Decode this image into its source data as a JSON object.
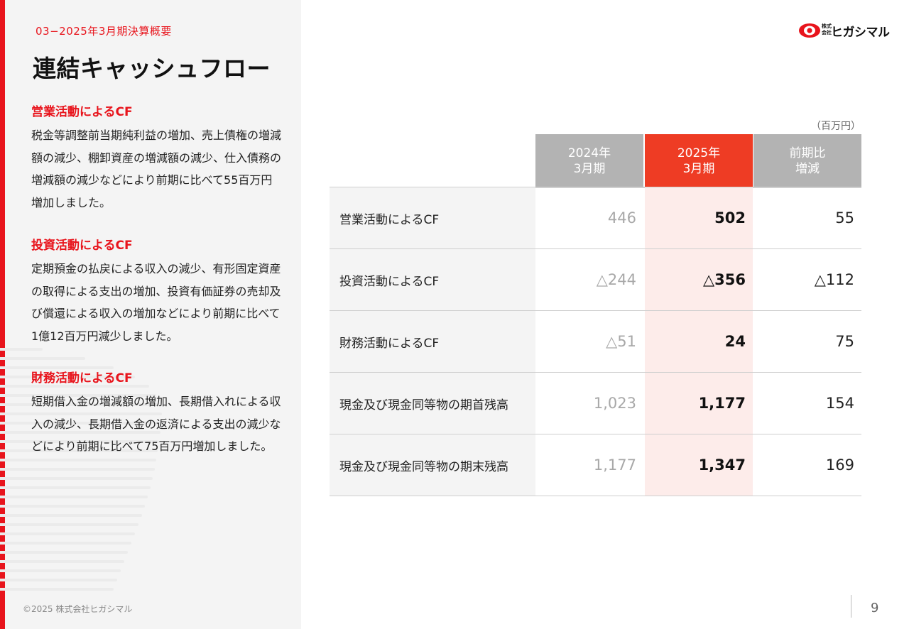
{
  "header": {
    "section": "03−2025年3月期決算概要",
    "title": "連結キャッシュフロー"
  },
  "logo": {
    "small_text_line1": "株式",
    "small_text_line2": "会社",
    "name": "ヒガシマル"
  },
  "explanations": [
    {
      "heading": "営業活動によるCF",
      "body": "税金等調整前当期純利益の増加、売上債権の増減額の減少、棚卸資産の増減額の減少、仕入債務の増減額の減少などにより前期に比べて55百万円増加しました。"
    },
    {
      "heading": "投資活動によるCF",
      "body": "定期預金の払戻による収入の減少、有形固定資産の取得による支出の増加、投資有価証券の売却及び償還による収入の増加などにより前期に比べて1億12百万円減少しました。"
    },
    {
      "heading": "財務活動によるCF",
      "body": "短期借入金の増減額の増加、長期借入れによる収入の減少、長期借入金の返済による支出の減少などにより前期に比べて75百万円増加しました。"
    }
  ],
  "table": {
    "unit": "（百万円）",
    "columns": [
      "2024年\n3月期",
      "2025年\n3月期",
      "前期比\n増減"
    ],
    "rows": [
      {
        "label": "営業活動によるCF",
        "prev": "446",
        "curr": "502",
        "diff": "55"
      },
      {
        "label": "投資活動によるCF",
        "prev": "△244",
        "curr": "△356",
        "diff": "△112"
      },
      {
        "label": "財務活動によるCF",
        "prev": "△51",
        "curr": "24",
        "diff": "75"
      },
      {
        "label": "現金及び現金同等物の期首残高",
        "prev": "1,023",
        "curr": "1,177",
        "diff": "154"
      },
      {
        "label": "現金及び現金同等物の期末残高",
        "prev": "1,177",
        "curr": "1,347",
        "diff": "169"
      }
    ]
  },
  "footer": {
    "copyright": "©2025 株式会社ヒガシマル",
    "page_number": "9"
  },
  "colors": {
    "accent_red": "#e8141c",
    "current_header": "#ee3c24",
    "current_cell": "#fdecea",
    "prior_header": "#b3b3b3"
  }
}
